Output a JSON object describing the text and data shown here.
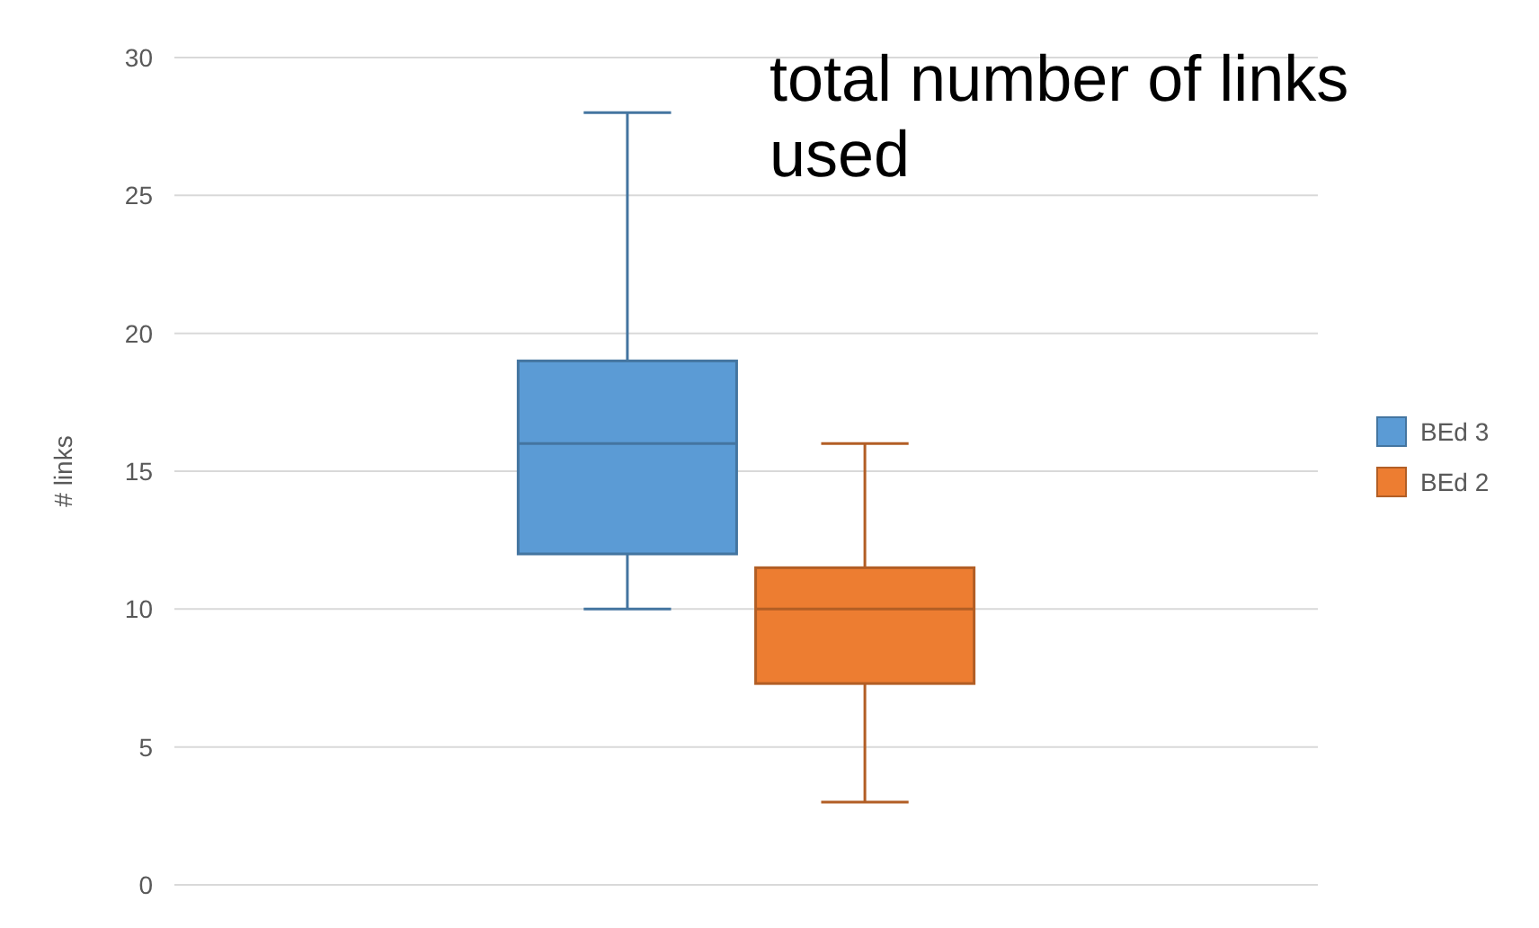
{
  "chart_data": {
    "type": "box",
    "title": "total number of links used",
    "ylabel": "# links",
    "categories": [
      null
    ],
    "series": [
      {
        "name": "BEd 3",
        "color": "#5b9bd5",
        "boxes": [
          {
            "low": 10,
            "q1": 12,
            "median": 16,
            "q3": 19,
            "high": 28
          }
        ]
      },
      {
        "name": "BEd 2",
        "color": "#ed7d31",
        "boxes": [
          {
            "low": 3,
            "q1": 7.3,
            "median": 10,
            "q3": 11.5,
            "high": 16
          }
        ]
      }
    ],
    "ylim": [
      0,
      30
    ],
    "yticks": [
      0,
      5,
      10,
      15,
      20,
      25,
      30
    ],
    "grid": "y",
    "legend": "right"
  }
}
